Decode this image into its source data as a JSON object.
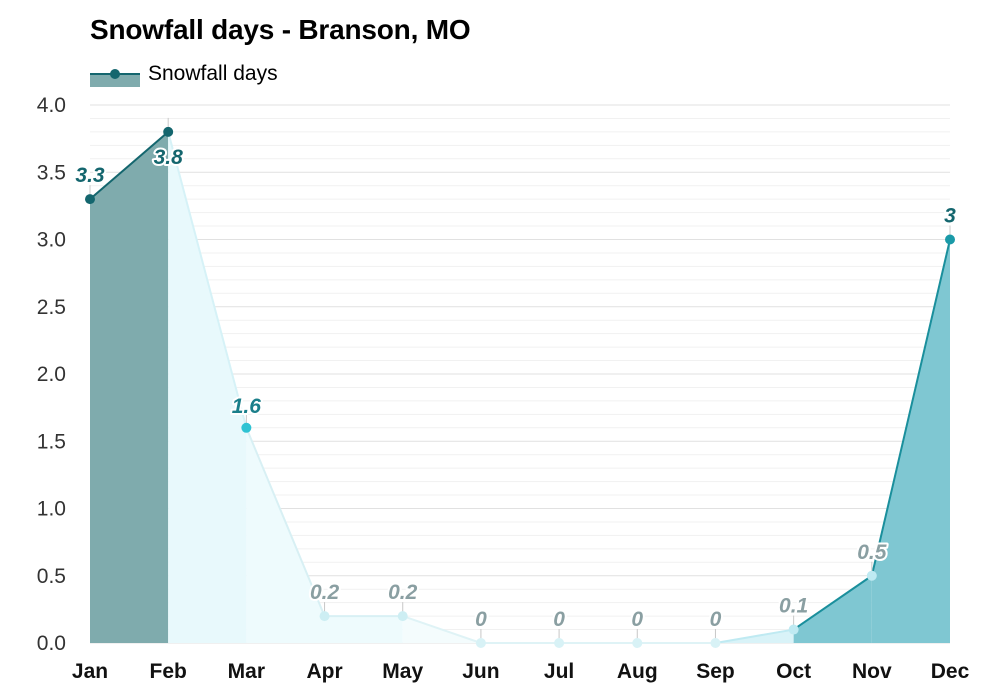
{
  "chart_data": {
    "type": "area",
    "title": "Snowfall days - Branson, MO",
    "legend": "Snowfall days",
    "legend_placement": "top-left",
    "grid": true,
    "categories": [
      "Jan",
      "Feb",
      "Mar",
      "Apr",
      "May",
      "Jun",
      "Jul",
      "Aug",
      "Sep",
      "Oct",
      "Nov",
      "Dec"
    ],
    "series": [
      {
        "name": "Snowfall days",
        "values": [
          3.3,
          3.8,
          1.6,
          0.2,
          0.2,
          0,
          0,
          0,
          0,
          0.1,
          0.5,
          3
        ],
        "labels": [
          "3.3",
          "3.8",
          "1.6",
          "0.2",
          "0.2",
          "0",
          "0",
          "0",
          "0",
          "0.1",
          "0.5",
          "3"
        ]
      }
    ],
    "ylim": [
      0,
      4
    ],
    "yticks": [
      "0.0",
      "0.5",
      "1.0",
      "1.5",
      "2.0",
      "2.5",
      "3.0",
      "3.5",
      "4.0"
    ],
    "colors": {
      "Jan": {
        "fill": "#7fabad",
        "line": "#14666e",
        "point": "#14666e",
        "label": "#14666e"
      },
      "Feb": {
        "fill": "#8fdfea",
        "line": "#2fc3d3",
        "point": "#14666e",
        "label": "#14666e"
      },
      "Mar": {
        "fill": "#e8f9fc",
        "line": "#d6f2f7",
        "point": "#2fc3d3",
        "label": "#1b7f8a"
      },
      "Apr": {
        "fill": "#eefbfd",
        "line": "#d8f0f4",
        "point": "#cdeef3",
        "label": "#8a9fa2"
      },
      "May": {
        "fill": "#eefbfd",
        "line": "#d8f0f4",
        "point": "#cdeef3",
        "label": "#8a9fa2"
      },
      "Jun": {
        "fill": "#f4fcfd",
        "line": "#dff3f6",
        "point": "#d8f2f6",
        "label": "#8a9fa2"
      },
      "Jul": {
        "fill": "#f4fcfd",
        "line": "#dff3f6",
        "point": "#d8f2f6",
        "label": "#8a9fa2"
      },
      "Aug": {
        "fill": "#f4fcfd",
        "line": "#dff3f6",
        "point": "#d8f2f6",
        "label": "#8a9fa2"
      },
      "Sep": {
        "fill": "#f4fcfd",
        "line": "#dff3f6",
        "point": "#d8f2f6",
        "label": "#8a9fa2"
      },
      "Oct": {
        "fill": "#d9f3f8",
        "line": "#bfeaf2",
        "point": "#bfeaf2",
        "label": "#8a9fa2"
      },
      "Nov": {
        "fill": "#7fc7d2",
        "line": "#1a8f9c",
        "point": "#bfeaf2",
        "label": "#8a9fa2"
      },
      "Dec": {
        "fill": "#7fc7d2",
        "line": "#1a8f9c",
        "point": "#1a9aa8",
        "label": "#14666e"
      }
    },
    "legend_colors": {
      "fill": "#7fabad",
      "line": "#14666e",
      "point": "#14666e"
    },
    "gridline_color": "#e3e3e3"
  }
}
